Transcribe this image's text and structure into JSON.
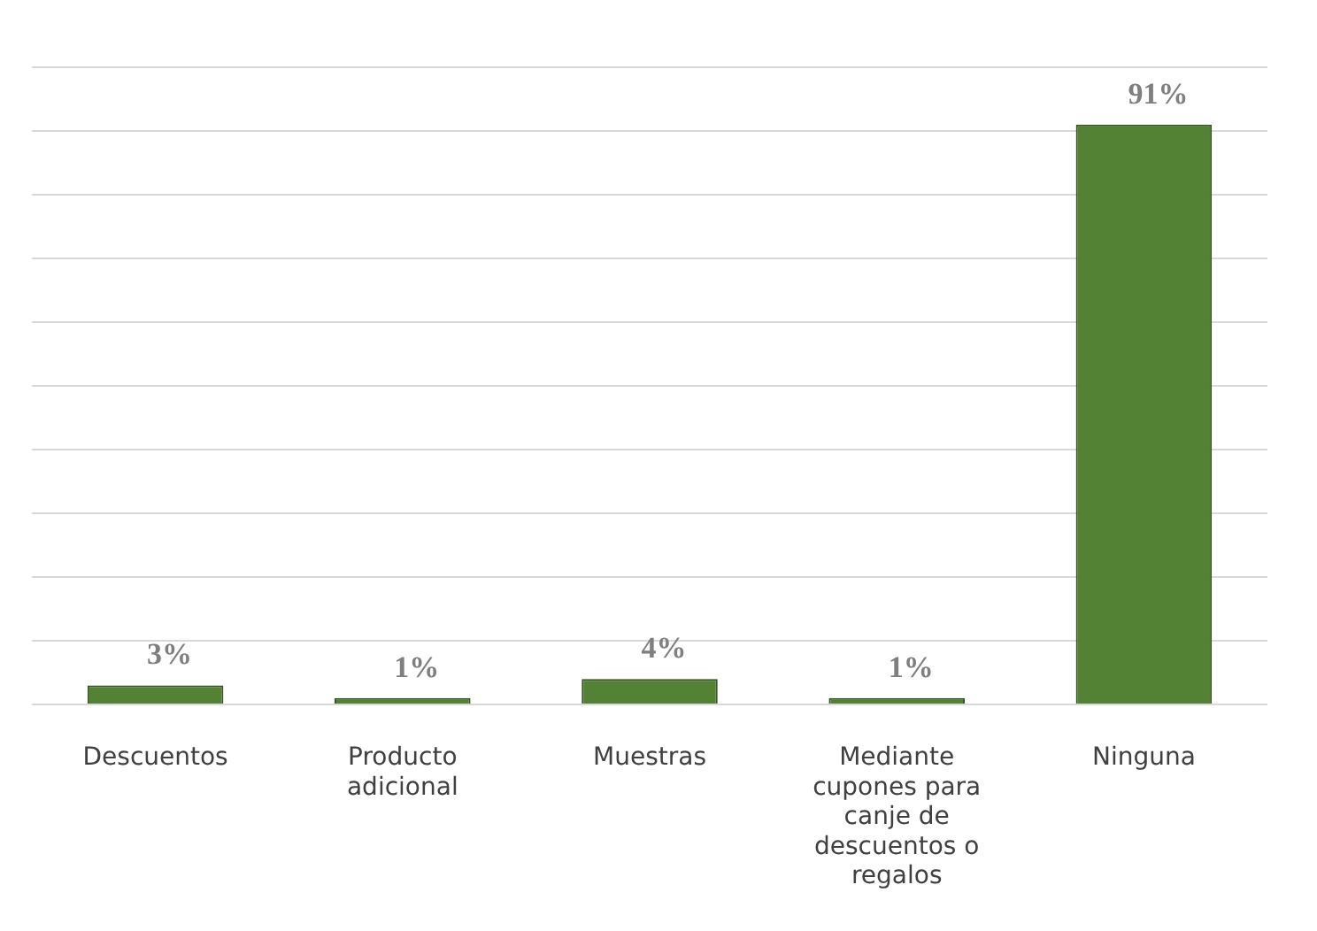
{
  "chart_data": {
    "type": "bar",
    "categories": [
      "Descuentos",
      "Producto adicional",
      "Muestras",
      "Mediante cupones para canje de descuentos o regalos",
      "Ninguna"
    ],
    "values": [
      3,
      1,
      4,
      1,
      91
    ],
    "value_labels": [
      "3%",
      "1%",
      "4%",
      "1%",
      "91%"
    ],
    "color": "#548235",
    "ylim": [
      0,
      100
    ],
    "yticks": [
      0,
      10,
      20,
      30,
      40,
      50,
      60,
      70,
      80,
      90,
      100
    ],
    "grid": "y",
    "tick_labels": "x",
    "legend": false
  }
}
